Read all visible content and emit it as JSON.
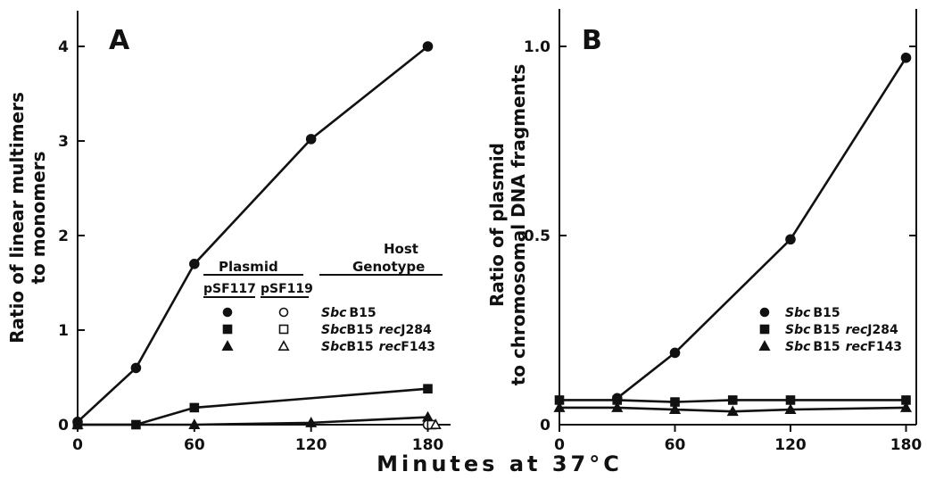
{
  "figure": {
    "xlabel": "Minutes at 37°C"
  },
  "chart_data": [
    {
      "panel_label": "A",
      "type": "line",
      "xlabel": "Minutes at 37°C",
      "ylabel_line1": "Ratio of linear multimers",
      "ylabel_line2": "to monomers",
      "xlim": [
        0,
        185
      ],
      "ylim": [
        0,
        4.3
      ],
      "xticks": [
        0,
        60,
        120,
        180
      ],
      "yticks": [
        0,
        1,
        2,
        3,
        4
      ],
      "legend": {
        "position": "center-right",
        "plasmid_header": "Plasmid",
        "host_header_line1": "Host",
        "host_header_line2": "Genotype",
        "plasmid_columns": [
          "pSF117",
          "pSF119"
        ],
        "rows": [
          {
            "genotype_italic": "Sbc",
            "genotype_rest": "B15",
            "filled": "circle",
            "open": "circle"
          },
          {
            "genotype_italic": "Sbc",
            "genotype_rest": "B15",
            "genotype_italic2": "rec",
            "genotype_rest2": "J284",
            "filled": "square",
            "open": "square"
          },
          {
            "genotype_italic": "Sbc",
            "genotype_rest": "B15",
            "genotype_italic2": "rec",
            "genotype_rest2": "F143",
            "filled": "triangle",
            "open": "triangle"
          }
        ]
      },
      "series": [
        {
          "plasmid": "pSF117",
          "host": "SbcB15",
          "marker": "circle",
          "filled": true,
          "x": [
            0,
            30,
            60,
            120,
            180
          ],
          "y": [
            0.03,
            0.6,
            1.7,
            3.02,
            4.0
          ]
        },
        {
          "plasmid": "pSF117",
          "host": "SbcB15 recJ284",
          "marker": "square",
          "filled": true,
          "x": [
            0,
            30,
            60,
            180
          ],
          "y": [
            0.0,
            0.0,
            0.18,
            0.38
          ]
        },
        {
          "plasmid": "pSF117",
          "host": "SbcB15 recF143",
          "marker": "triangle",
          "filled": true,
          "x": [
            0,
            60,
            120,
            180
          ],
          "y": [
            0.0,
            0.0,
            0.02,
            0.08
          ]
        },
        {
          "plasmid": "pSF119",
          "host": "SbcB15",
          "marker": "circle",
          "filled": false,
          "x": [
            180
          ],
          "y": [
            0.0
          ]
        },
        {
          "plasmid": "pSF119",
          "host": "SbcB15 recJ284",
          "marker": "square",
          "filled": false,
          "x": [
            182
          ],
          "y": [
            0.0
          ]
        },
        {
          "plasmid": "pSF119",
          "host": "SbcB15 recF143",
          "marker": "triangle",
          "filled": false,
          "x": [
            184
          ],
          "y": [
            0.0
          ]
        }
      ]
    },
    {
      "panel_label": "B",
      "type": "line",
      "xlabel": "Minutes at 37°C",
      "ylabel_line1": "Ratio of plasmid",
      "ylabel_line2": "to chromosomal DNA fragments",
      "xlim": [
        0,
        185
      ],
      "ylim": [
        0,
        1.1
      ],
      "xticks": [
        0,
        60,
        120,
        180
      ],
      "ytick_labels": [
        "0",
        "0.5",
        "1.0"
      ],
      "yticks": [
        0,
        0.5,
        1.0
      ],
      "legend": {
        "position": "center-right",
        "rows": [
          {
            "genotype_italic": "Sbc",
            "genotype_rest": "B15",
            "marker": "circle"
          },
          {
            "genotype_italic": "Sbc",
            "genotype_rest": "B15",
            "genotype_italic2": "rec",
            "genotype_rest2": "J284",
            "marker": "square"
          },
          {
            "genotype_italic": "Sbc",
            "genotype_rest": "B15",
            "genotype_italic2": "rec",
            "genotype_rest2": "F143",
            "marker": "triangle"
          }
        ]
      },
      "series": [
        {
          "host": "SbcB15",
          "marker": "circle",
          "filled": true,
          "x": [
            30,
            60,
            120,
            180
          ],
          "y": [
            0.07,
            0.19,
            0.49,
            0.97
          ]
        },
        {
          "host": "SbcB15 recJ284",
          "marker": "square",
          "filled": true,
          "x": [
            0,
            30,
            60,
            90,
            120,
            180
          ],
          "y": [
            0.065,
            0.065,
            0.06,
            0.065,
            0.065,
            0.065
          ]
        },
        {
          "host": "SbcB15 recF143",
          "marker": "triangle",
          "filled": true,
          "x": [
            0,
            30,
            60,
            90,
            120,
            180
          ],
          "y": [
            0.045,
            0.045,
            0.04,
            0.035,
            0.04,
            0.045
          ]
        }
      ]
    }
  ]
}
